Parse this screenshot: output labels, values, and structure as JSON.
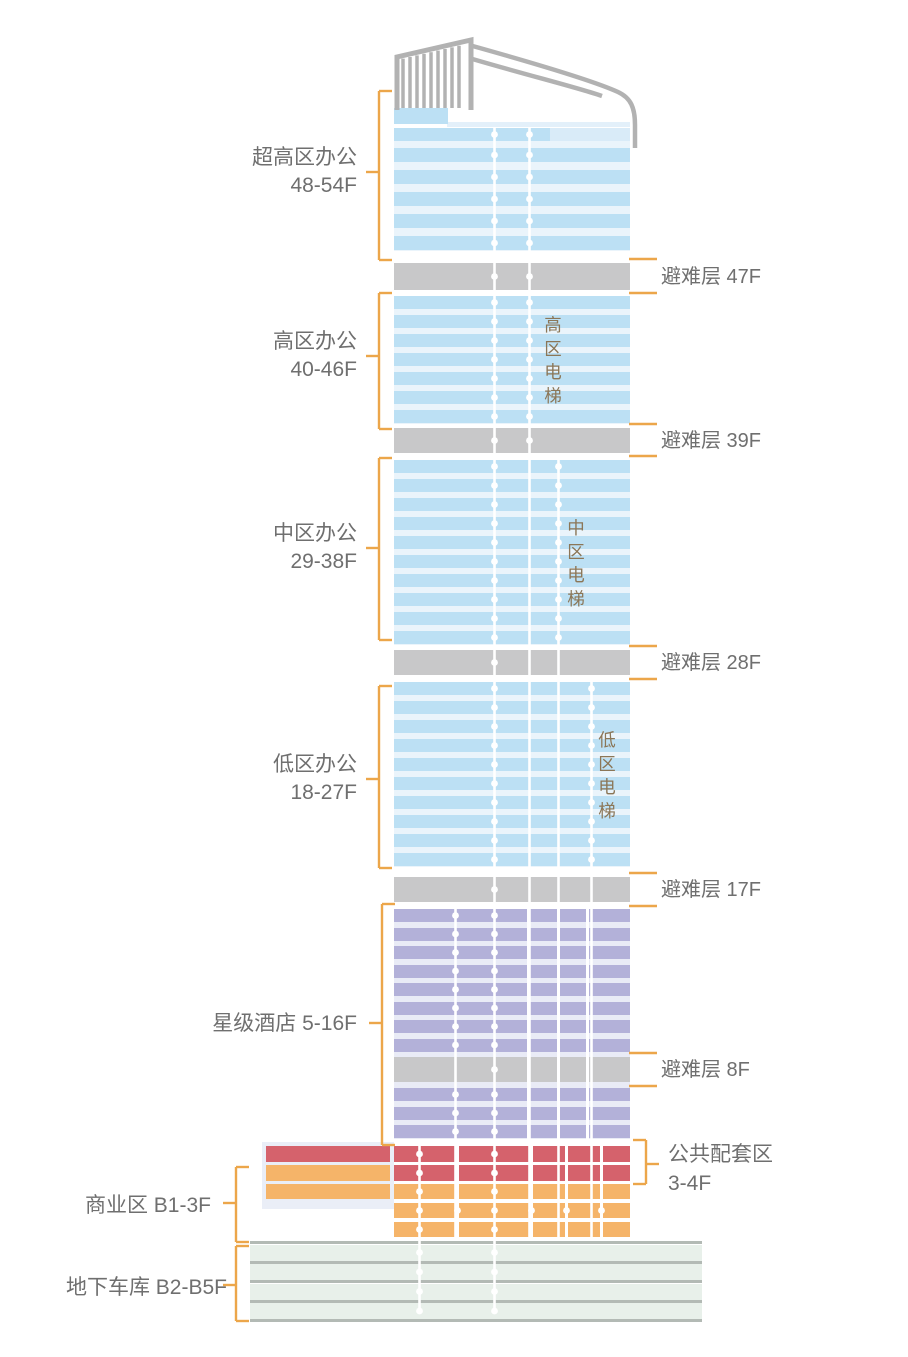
{
  "diagram": {
    "type": "building-vertical-zoning",
    "zones": {
      "ultra_office": {
        "name": "超高区办公",
        "range": "48-54F"
      },
      "refuge_47": {
        "text": "避难层 47F"
      },
      "high_office": {
        "name": "高区办公",
        "range": "40-46F"
      },
      "high_elevator": {
        "text": "高区电梯"
      },
      "refuge_39": {
        "text": "避难层 39F"
      },
      "mid_office": {
        "name": "中区办公",
        "range": "29-38F"
      },
      "mid_elevator": {
        "text": "中区电梯"
      },
      "refuge_28": {
        "text": "避难层 28F"
      },
      "low_office": {
        "name": "低区办公",
        "range": "18-27F"
      },
      "low_elevator": {
        "text": "低区电梯"
      },
      "refuge_17": {
        "text": "避难层 17F"
      },
      "hotel": {
        "text": "星级酒店 5-16F"
      },
      "refuge_8": {
        "text": "避难层 8F"
      },
      "amenity": {
        "name": "公共配套区",
        "range": "3-4F"
      },
      "commerce": {
        "text": "商业区 B1-3F"
      },
      "parking": {
        "text": "地下车库 B2-B5F"
      }
    },
    "floors": {
      "ultra_regular_bands": 5,
      "high_zone_bands": 7,
      "mid_zone_bands": 10,
      "low_zone_bands": 10,
      "hotel_upper_bands": 8,
      "hotel_lower_bands": 3,
      "podium_levels": 5,
      "basement_levels": 4,
      "refuge_count": 5
    },
    "colors": {
      "office_band": "#BCE0F4",
      "office_band_pale": "#D9EBF8",
      "office_bg": "#EAF4FB",
      "refuge_gray": "#C8C8C9",
      "hotel_band": "#B3B1D9",
      "hotel_bg": "#E9EBF6",
      "amenity_red": "#D5626C",
      "commerce_orange": "#F5B469",
      "podium_wing_bg": "#EAEEF7",
      "basement_fill": "#E8F0EA",
      "basement_line": "#B3BAB5",
      "bracket_orange": "#ECA64A",
      "label_gray": "#6F6F6F",
      "elevator_text": "#8B7657",
      "crown_gray": "#B2B2B2",
      "shaft_white": "#FFFFFF"
    }
  }
}
